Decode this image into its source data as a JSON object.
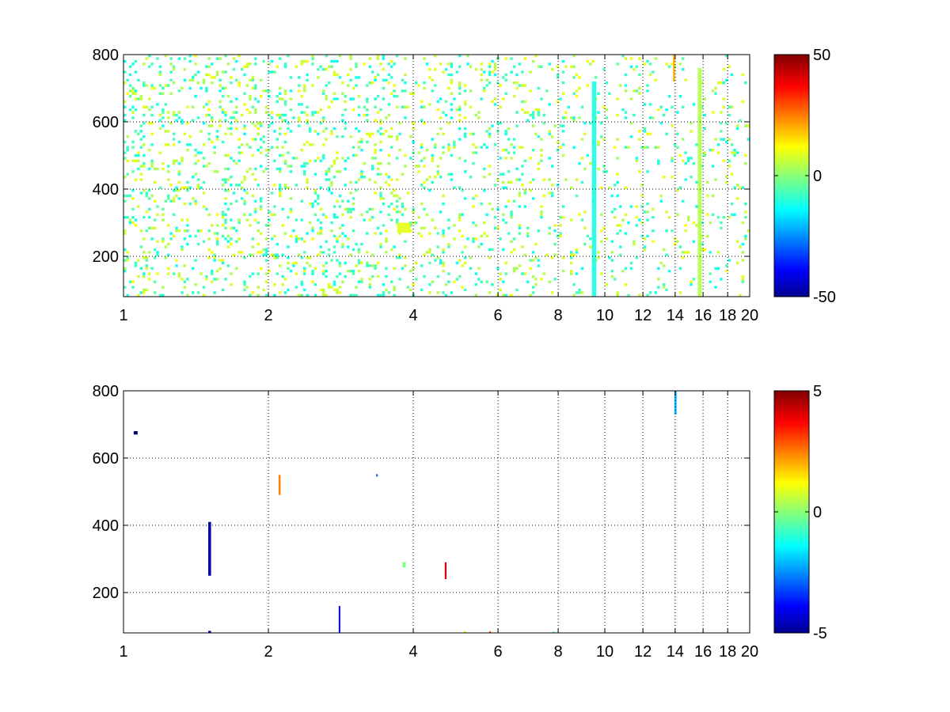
{
  "chart_data": [
    {
      "type": "heatmap",
      "title": "",
      "xlabel": "",
      "ylabel": "",
      "x_scale": "log",
      "xlim": [
        1,
        20
      ],
      "ylim": [
        80,
        800
      ],
      "x_ticks": [
        1,
        2,
        4,
        6,
        8,
        10,
        12,
        14,
        16,
        18,
        20
      ],
      "x_tick_labels": [
        "1",
        "2",
        "4",
        "6",
        "8",
        "10",
        "12",
        "14",
        "16",
        "18",
        "20"
      ],
      "y_ticks": [
        200,
        400,
        600,
        800
      ],
      "y_tick_labels": [
        "200",
        "400",
        "600",
        "800"
      ],
      "grid": true,
      "colorbar": {
        "colormap": "jet",
        "clim": [
          -50,
          50
        ],
        "ticks": [
          50,
          0,
          -50
        ],
        "tick_labels": [
          "50",
          "0",
          "-50"
        ]
      },
      "notable_features": [
        {
          "x_range": [
            15.6,
            15.9
          ],
          "y_range": [
            80,
            760
          ],
          "value": 5,
          "description": "dense yellow-green vertical band"
        },
        {
          "x_range": [
            13.85,
            14.0
          ],
          "y_range": [
            720,
            800
          ],
          "value": 20,
          "description": "orange patch at top"
        },
        {
          "x_range": [
            9.4,
            9.6
          ],
          "y_range": [
            80,
            720
          ],
          "value": -10,
          "description": "cyan-green vertical band"
        },
        {
          "x_range": [
            3.7,
            3.95
          ],
          "y_range": [
            270,
            300
          ],
          "value": 10,
          "description": "small yellow cluster"
        }
      ]
    },
    {
      "type": "heatmap",
      "title": "",
      "xlabel": "",
      "ylabel": "",
      "x_scale": "log",
      "xlim": [
        1,
        20
      ],
      "ylim": [
        80,
        800
      ],
      "x_ticks": [
        1,
        2,
        4,
        6,
        8,
        10,
        12,
        14,
        16,
        18,
        20
      ],
      "x_tick_labels": [
        "1",
        "2",
        "4",
        "6",
        "8",
        "10",
        "12",
        "14",
        "16",
        "18",
        "20"
      ],
      "y_ticks": [
        200,
        400,
        600,
        800
      ],
      "y_tick_labels": [
        "200",
        "400",
        "600",
        "800"
      ],
      "grid": true,
      "colorbar": {
        "colormap": "jet",
        "clim": [
          -5,
          5
        ],
        "ticks": [
          5,
          0,
          -5
        ],
        "tick_labels": [
          "5",
          "0",
          "-5"
        ]
      },
      "features": [
        {
          "x": 13.95,
          "x_width": 0.15,
          "y_range": [
            730,
            800
          ],
          "value": -2
        },
        {
          "x": 1.05,
          "x_width": 0.02,
          "y_range": [
            670,
            680
          ],
          "value": -5
        },
        {
          "x": 1.5,
          "x_width": 0.02,
          "y_range": [
            250,
            410
          ],
          "value": -4.5
        },
        {
          "x": 2.1,
          "x_width": 0.02,
          "y_range": [
            490,
            550
          ],
          "value": 2.5
        },
        {
          "x": 2.8,
          "x_width": 0.02,
          "y_range": [
            80,
            160
          ],
          "value": -4
        },
        {
          "x": 3.35,
          "x_width": 0.02,
          "y_range": [
            545,
            552
          ],
          "value": -3
        },
        {
          "x": 3.8,
          "x_width": 0.06,
          "y_range": [
            275,
            290
          ],
          "value": 0
        },
        {
          "x": 4.65,
          "x_width": 0.04,
          "y_range": [
            240,
            290
          ],
          "value": 4
        },
        {
          "x": 5.1,
          "x_width": 0.05,
          "y_range": [
            80,
            85
          ],
          "value": 1.5
        },
        {
          "x": 5.75,
          "x_width": 0.05,
          "y_range": [
            80,
            85
          ],
          "value": 3
        },
        {
          "x": 7.8,
          "x_width": 0.05,
          "y_range": [
            80,
            84
          ],
          "value": -1
        },
        {
          "x": 1.5,
          "x_width": 0.02,
          "y_range": [
            80,
            86
          ],
          "value": -4.5
        }
      ]
    }
  ]
}
